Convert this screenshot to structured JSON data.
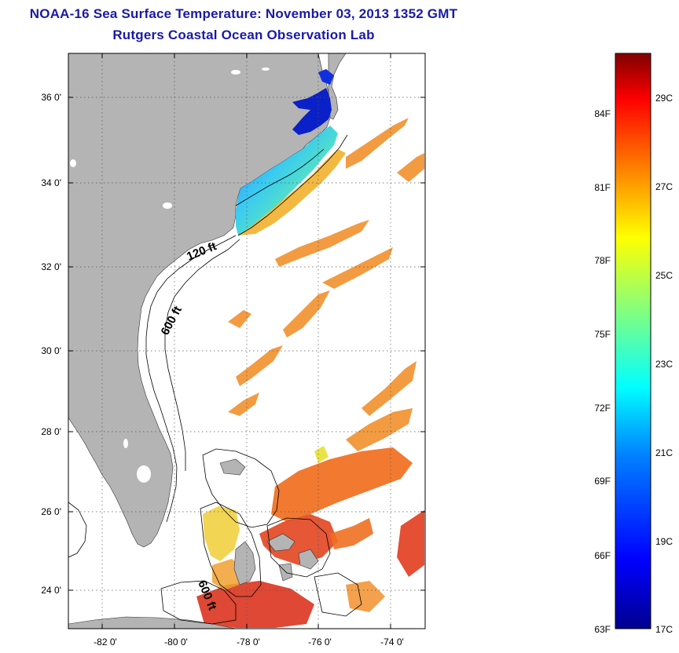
{
  "header": {
    "title": "NOAA-16 Sea Surface Temperature:  November 03, 2013 1352 GMT",
    "subtitle": "Rutgers Coastal Ocean Observation Lab"
  },
  "map": {
    "lat_ticks": [
      "36 0'",
      "34 0'",
      "32 0'",
      "30 0'",
      "28 0'",
      "26 0'",
      "24 0'"
    ],
    "lon_ticks": [
      "-82 0'",
      "-80 0'",
      "-78 0'",
      "-76 0'",
      "-74 0'"
    ],
    "contour_labels": [
      "120 ft",
      "600 ft",
      "600 ft"
    ],
    "land_color": "#b4b4b4",
    "ocean_color": "#ffffff"
  },
  "colorbar": {
    "fahrenheit_labels": [
      "84F",
      "81F",
      "78F",
      "75F",
      "72F",
      "69F",
      "66F",
      "63F"
    ],
    "celsius_labels": [
      "29C",
      "27C",
      "25C",
      "23C",
      "21C",
      "19C",
      "17C"
    ],
    "scale_colors": [
      "#00008f",
      "#0000ff",
      "#0080ff",
      "#00ffff",
      "#80ff80",
      "#ffff00",
      "#ff8000",
      "#ff0000",
      "#800000"
    ]
  }
}
